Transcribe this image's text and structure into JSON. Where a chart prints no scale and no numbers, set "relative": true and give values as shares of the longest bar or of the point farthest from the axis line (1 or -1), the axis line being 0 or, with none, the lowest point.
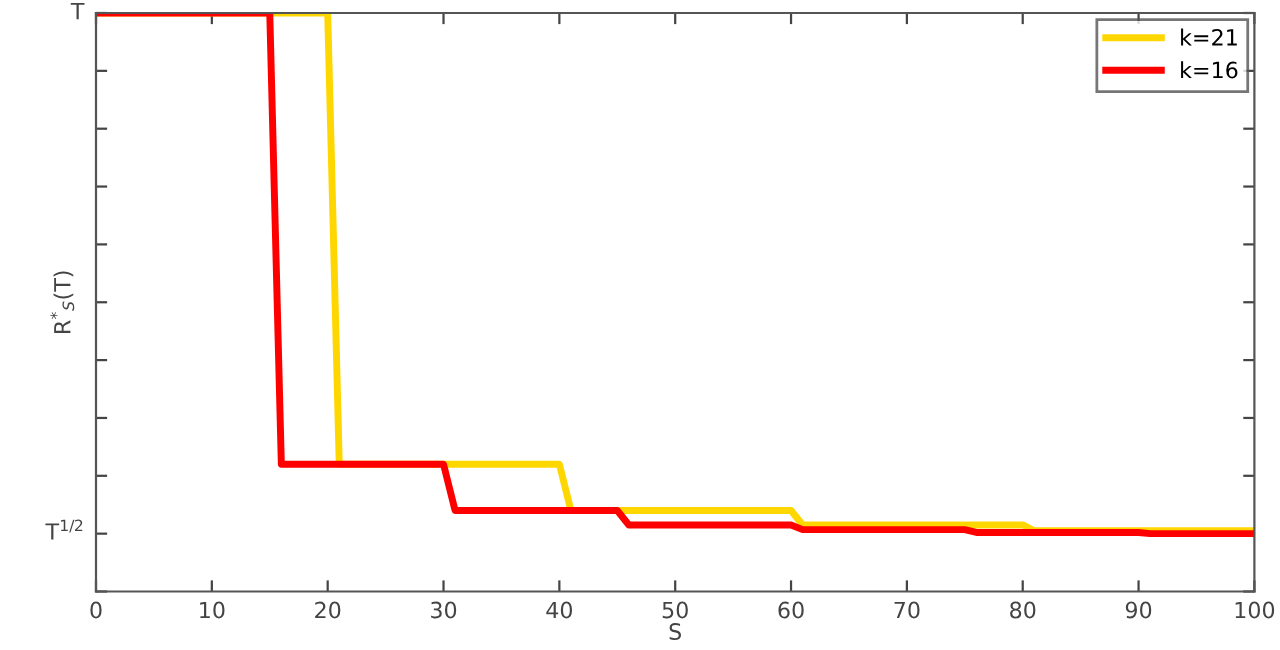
{
  "chart_data": {
    "type": "line",
    "relative": true,
    "xlabel": "S",
    "ylabel": "R$^{*}$$_{S}$(T)",
    "xlim": [
      0,
      100
    ],
    "xticks": [
      0,
      10,
      20,
      30,
      40,
      50,
      60,
      70,
      80,
      90,
      100
    ],
    "annotations": [
      "T$^{1/2}$",
      "T"
    ],
    "grid": false,
    "legend": "top right",
    "line_style": "solid",
    "marker": "none",
    "series": [
      {
        "name": "k=21",
        "color": "#ffd700",
        "x": [
          0,
          20,
          21,
          40,
          41,
          60,
          61,
          80,
          81,
          100
        ],
        "values": [
          1,
          1,
          0.22,
          0.22,
          0.14,
          0.14,
          0.115,
          0.115,
          0.105,
          0.105
        ]
      },
      {
        "name": "k=16",
        "color": "#ff0000",
        "x": [
          0,
          15,
          16,
          30,
          31,
          45,
          46,
          60,
          61,
          75,
          76,
          90,
          91,
          100
        ],
        "values": [
          1,
          1,
          0.22,
          0.22,
          0.14,
          0.14,
          0.115,
          0.115,
          0.107,
          0.107,
          0.102,
          0.102,
          0.1,
          0.1
        ]
      }
    ]
  }
}
